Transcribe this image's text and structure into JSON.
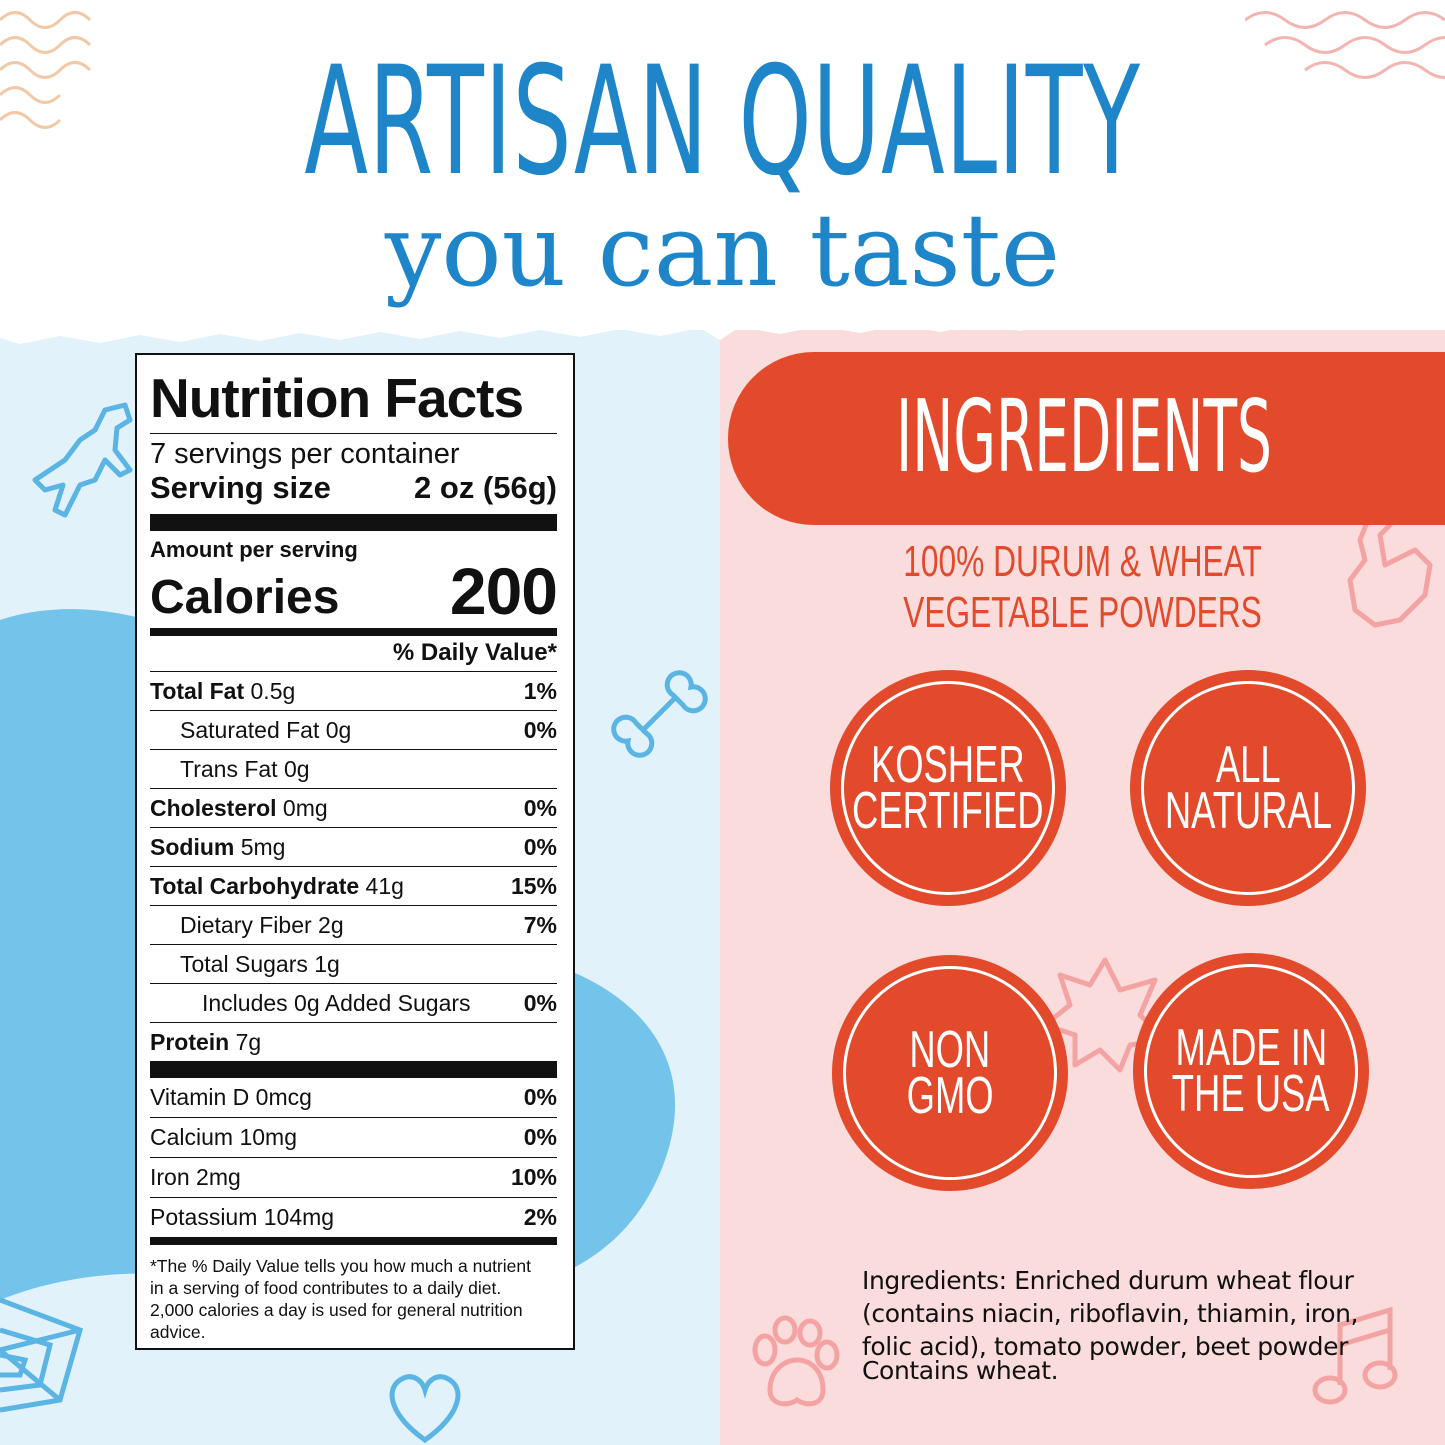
{
  "headline": {
    "line1": "ARTISAN QUALITY",
    "line2": "you can taste"
  },
  "nutrition": {
    "title": "Nutrition Facts",
    "servings": "7 servings per container",
    "serving_size_label": "Serving size",
    "serving_size_value": "2 oz (56g)",
    "amount_per_serving": "Amount per serving",
    "calories_label": "Calories",
    "calories_value": "200",
    "daily_value_header": "% Daily Value*",
    "rows": [
      {
        "bold": "Total Fat",
        "amount": " 0.5g",
        "pct": "1%"
      },
      {
        "name": "Saturated Fat 0g",
        "pct": "0%"
      },
      {
        "name": "Trans Fat 0g",
        "pct": ""
      },
      {
        "bold": "Cholesterol",
        "amount": " 0mg",
        "pct": "0%"
      },
      {
        "bold": "Sodium",
        "amount": " 5mg",
        "pct": "0%"
      },
      {
        "bold": "Total Carbohydrate",
        "amount": " 41g",
        "pct": "15%"
      },
      {
        "name": "Dietary Fiber 2g",
        "pct": "7%"
      },
      {
        "name": "Total Sugars 1g",
        "pct": ""
      },
      {
        "name": "Includes 0g Added Sugars",
        "pct": "0%"
      },
      {
        "bold": "Protein",
        "amount": " 7g",
        "pct": ""
      }
    ],
    "vitamins": [
      {
        "name": "Vitamin D 0mcg",
        "pct": "0%"
      },
      {
        "name": "Calcium 10mg",
        "pct": "0%"
      },
      {
        "name": "Iron 2mg",
        "pct": "10%"
      },
      {
        "name": "Potassium 104mg",
        "pct": "2%"
      }
    ],
    "footnote_lines": [
      "*The % Daily Value tells you how much a nutrient",
      "in a serving of food contributes to a daily diet.",
      "2,000 calories a day is used for general nutrition",
      "advice."
    ]
  },
  "ingredients_panel": {
    "banner": "INGREDIENTS",
    "subtitle_line1": "100% DURUM & WHEAT",
    "subtitle_line2": "VEGETABLE POWDERS",
    "badges": [
      {
        "line1": "KOSHER",
        "line2": "CERTIFIED"
      },
      {
        "line1": "ALL",
        "line2": "NATURAL"
      },
      {
        "line1": "NON",
        "line2": "GMO"
      },
      {
        "line1": "MADE IN",
        "line2": "THE USA"
      }
    ],
    "ingredients_lines": [
      "Ingredients: Enriched durum wheat flour",
      "(contains niacin, riboflavin, thiamin, iron,",
      "folic acid), tomato powder, beet powder"
    ],
    "contains": "Contains wheat."
  },
  "colors": {
    "headline_blue": "#1e86c8",
    "panel_blue": "#e1f2fb",
    "shape_blue": "#73c3eb",
    "panel_pink": "#f9dcdb",
    "accent_red": "#e34a2b"
  },
  "decor_icons": [
    "wavy-lines-icon",
    "dinosaur-icon",
    "bone-icon",
    "spiderweb-icon",
    "heart-outline-icon",
    "rooster-icon",
    "flower-icon",
    "paw-icon",
    "music-note-icon"
  ]
}
